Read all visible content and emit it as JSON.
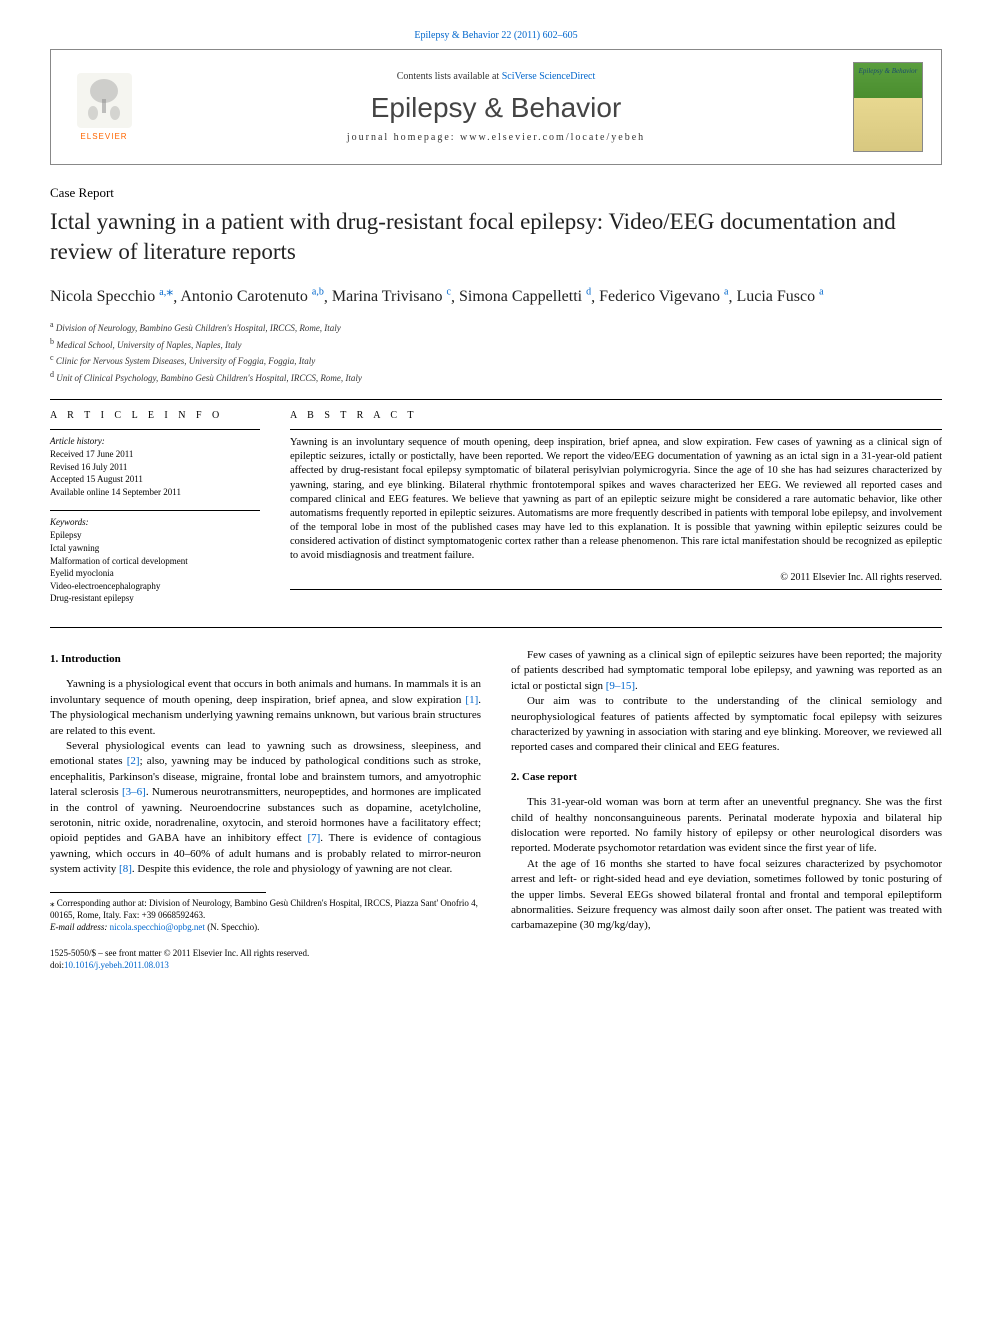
{
  "top_link": {
    "journal": "Epilepsy & Behavior",
    "citation": "22 (2011) 602–605",
    "url_text": "Epilepsy & Behavior 22 (2011) 602–605"
  },
  "header": {
    "contents_prefix": "Contents lists available at ",
    "contents_link": "SciVerse ScienceDirect",
    "journal_title": "Epilepsy & Behavior",
    "homepage_prefix": "journal homepage: ",
    "homepage_url": "www.elsevier.com/locate/yebeh",
    "elsevier_label": "ELSEVIER",
    "cover_title": "Epilepsy & Behavior"
  },
  "article": {
    "type": "Case Report",
    "title": "Ictal yawning in a patient with drug-resistant focal epilepsy: Video/EEG documentation and review of literature reports"
  },
  "authors": [
    {
      "name": "Nicola Specchio",
      "marks": "a,⁎"
    },
    {
      "name": "Antonio Carotenuto",
      "marks": "a,b"
    },
    {
      "name": "Marina Trivisano",
      "marks": "c"
    },
    {
      "name": "Simona Cappelletti",
      "marks": "d"
    },
    {
      "name": "Federico Vigevano",
      "marks": "a"
    },
    {
      "name": "Lucia Fusco",
      "marks": "a"
    }
  ],
  "affiliations": [
    {
      "mark": "a",
      "text": "Division of Neurology, Bambino Gesù Children's Hospital, IRCCS, Rome, Italy"
    },
    {
      "mark": "b",
      "text": "Medical School, University of Naples, Naples, Italy"
    },
    {
      "mark": "c",
      "text": "Clinic for Nervous System Diseases, University of Foggia, Foggia, Italy"
    },
    {
      "mark": "d",
      "text": "Unit of Clinical Psychology, Bambino Gesù Children's Hospital, IRCCS, Rome, Italy"
    }
  ],
  "article_info": {
    "heading": "A R T I C L E   I N F O",
    "history_label": "Article history:",
    "history": [
      "Received 17 June 2011",
      "Revised 16 July 2011",
      "Accepted 15 August 2011",
      "Available online 14 September 2011"
    ],
    "keywords_label": "Keywords:",
    "keywords": [
      "Epilepsy",
      "Ictal yawning",
      "Malformation of cortical development",
      "Eyelid myoclonia",
      "Video-electroencephalography",
      "Drug-resistant epilepsy"
    ]
  },
  "abstract": {
    "heading": "A B S T R A C T",
    "text": "Yawning is an involuntary sequence of mouth opening, deep inspiration, brief apnea, and slow expiration. Few cases of yawning as a clinical sign of epileptic seizures, ictally or postictally, have been reported. We report the video/EEG documentation of yawning as an ictal sign in a 31-year-old patient affected by drug-resistant focal epilepsy symptomatic of bilateral perisylvian polymicrogyria. Since the age of 10 she has had seizures characterized by yawning, staring, and eye blinking. Bilateral rhythmic frontotemporal spikes and waves characterized her EEG. We reviewed all reported cases and compared clinical and EEG features. We believe that yawning as part of an epileptic seizure might be considered a rare automatic behavior, like other automatisms frequently reported in epileptic seizures. Automatisms are more frequently described in patients with temporal lobe epilepsy, and involvement of the temporal lobe in most of the published cases may have led to this explanation. It is possible that yawning within epileptic seizures could be considered activation of distinct symptomatogenic cortex rather than a release phenomenon. This rare ictal manifestation should be recognized as epileptic to avoid misdiagnosis and treatment failure.",
    "copyright": "© 2011 Elsevier Inc. All rights reserved."
  },
  "body": {
    "col1": {
      "h1": "1. Introduction",
      "p1": "Yawning is a physiological event that occurs in both animals and humans. In mammals it is an involuntary sequence of mouth opening, deep inspiration, brief apnea, and slow expiration ",
      "p1_cite": "[1]",
      "p1_tail": ". The physiological mechanism underlying yawning remains unknown, but various brain structures are related to this event.",
      "p2": "Several physiological events can lead to yawning such as drowsiness, sleepiness, and emotional states ",
      "p2_cite": "[2]",
      "p2_mid": "; also, yawning may be induced by pathological conditions such as stroke, encephalitis, Parkinson's disease, migraine, frontal lobe and brainstem tumors, and amyotrophic lateral sclerosis ",
      "p2_cite2": "[3–6]",
      "p2_mid2": ". Numerous neurotransmitters, neuropeptides, and hormones are implicated in the control of yawning. Neuroendocrine substances such as dopamine, acetylcholine, serotonin, nitric oxide, noradrenaline, oxytocin, and steroid hormones have a facilitatory effect; opioid peptides and GABA have an inhibitory effect ",
      "p2_cite3": "[7]",
      "p2_mid3": ". There is evidence of contagious yawning, which occurs in 40–60% of adult humans and is probably related to mirror-neuron system activity ",
      "p2_cite4": "[8]",
      "p2_tail": ". Despite this evidence, the role and physiology of yawning are not clear."
    },
    "col2": {
      "p1": "Few cases of yawning as a clinical sign of epileptic seizures have been reported; the majority of patients described had symptomatic temporal lobe epilepsy, and yawning was reported as an ictal or postictal sign ",
      "p1_cite": "[9–15]",
      "p1_tail": ".",
      "p2": "Our aim was to contribute to the understanding of the clinical semiology and neurophysiological features of patients affected by symptomatic focal epilepsy with seizures characterized by yawning in association with staring and eye blinking. Moreover, we reviewed all reported cases and compared their clinical and EEG features.",
      "h2": "2. Case report",
      "p3": "This 31-year-old woman was born at term after an uneventful pregnancy. She was the first child of healthy nonconsanguineous parents. Perinatal moderate hypoxia and bilateral hip dislocation were reported. No family history of epilepsy or other neurological disorders was reported. Moderate psychomotor retardation was evident since the first year of life.",
      "p4": "At the age of 16 months she started to have focal seizures characterized by psychomotor arrest and left- or right-sided head and eye deviation, sometimes followed by tonic posturing of the upper limbs. Several EEGs showed bilateral frontal and frontal and temporal epileptiform abnormalities. Seizure frequency was almost daily soon after onset. The patient was treated with carbamazepine (30 mg/kg/day),"
    }
  },
  "footnote": {
    "corr_label": "⁎ Corresponding author at: Division of Neurology, Bambino Gesù Children's Hospital, IRCCS, Piazza Sant' Onofrio 4, 00165, Rome, Italy. Fax: +39 0668592463.",
    "email_label": "E-mail address:",
    "email": "nicola.specchio@opbg.net",
    "email_who": "(N. Specchio)."
  },
  "bottom": {
    "front_matter": "1525-5050/$ – see front matter © 2011 Elsevier Inc. All rights reserved.",
    "doi_label": "doi:",
    "doi": "10.1016/j.yebeh.2011.08.013"
  },
  "colors": {
    "link": "#0066cc",
    "elsevier_orange": "#ff6600",
    "text": "#000000",
    "bg": "#ffffff"
  }
}
